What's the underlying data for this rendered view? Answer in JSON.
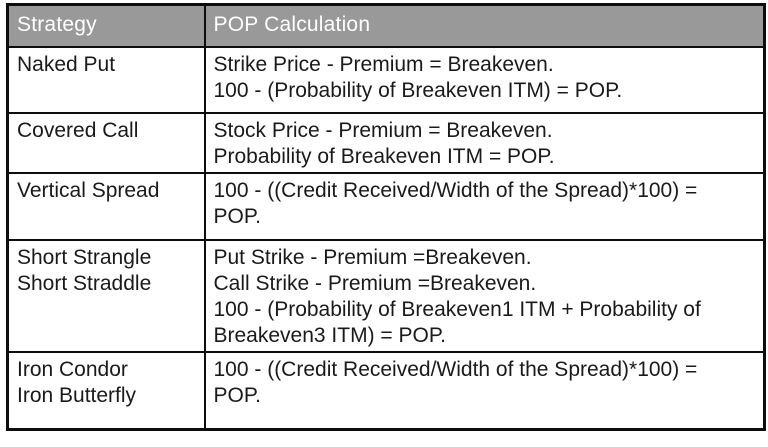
{
  "table": {
    "columns": [
      {
        "label": "Strategy"
      },
      {
        "label": "POP Calculation"
      }
    ],
    "rows": [
      {
        "strategy": [
          "Naked Put"
        ],
        "calculation": [
          "Strike Price - Premium = Breakeven.",
          "100 - (Probability of Breakeven ITM) = POP."
        ]
      },
      {
        "strategy": [
          "Covered Call"
        ],
        "calculation": [
          "Stock Price - Premium = Breakeven.",
          "Probability of Breakeven ITM = POP."
        ]
      },
      {
        "strategy": [
          "Vertical Spread"
        ],
        "calculation": [
          "100 - ((Credit Received/Width of the Spread)*100) =",
          "POP."
        ]
      },
      {
        "strategy": [
          "Short Strangle",
          "Short Straddle"
        ],
        "calculation": [
          "Put Strike - Premium =Breakeven.",
          "Call Strike - Premium =Breakeven.",
          "100 - (Probability of Breakeven1 ITM + Probability of",
          "Breakeven3 ITM) = POP."
        ]
      },
      {
        "strategy": [
          "Iron Condor",
          "Iron Butterfly"
        ],
        "calculation": [
          "100 - ((Credit Received/Width of the Spread)*100) =",
          "POP."
        ]
      }
    ]
  },
  "colors": {
    "header_background": "#999999",
    "header_text": "#ffffff",
    "body_text": "#1a1a1a",
    "border": "#0d0d0d",
    "cell_background": "#ffffff"
  }
}
